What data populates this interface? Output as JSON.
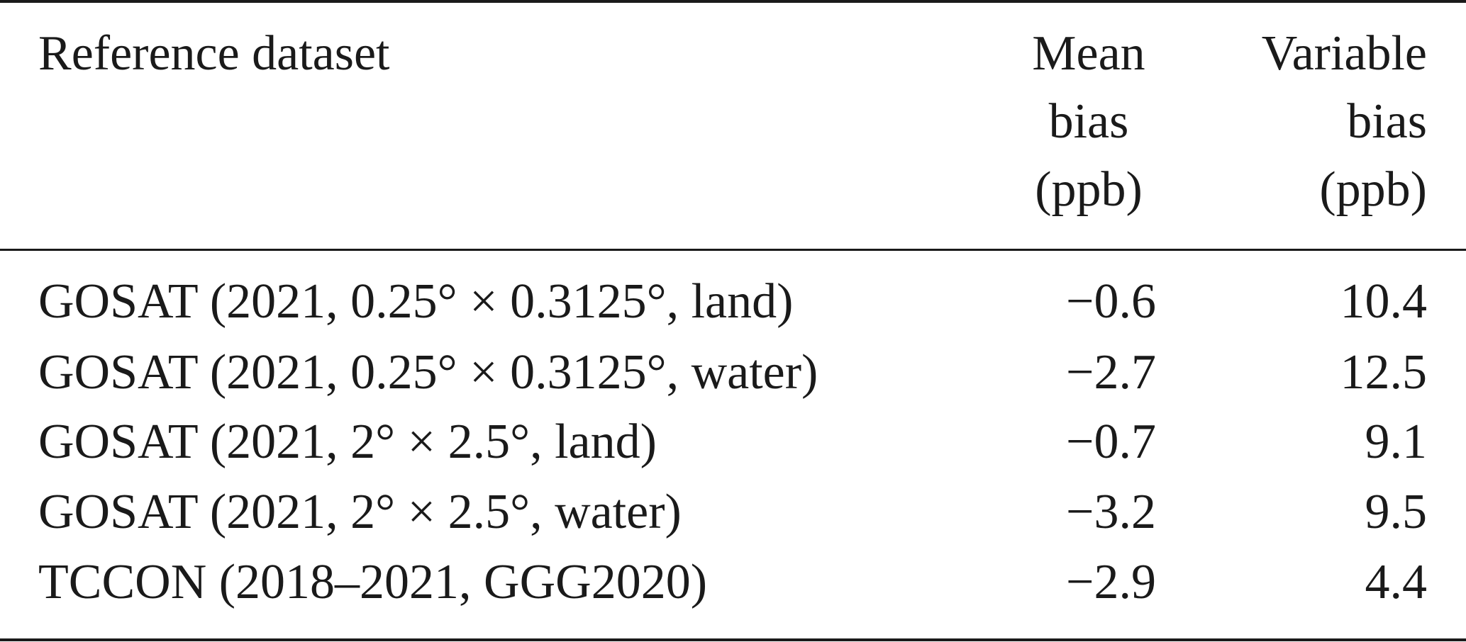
{
  "table": {
    "headers": {
      "dataset": "Reference dataset",
      "mean_bias": "Mean\nbias\n(ppb)",
      "variable_bias": "Variable\nbias\n(ppb)"
    },
    "rows": [
      {
        "dataset": "GOSAT (2021, 0.25° × 0.3125°, land)",
        "mean_bias": "−0.6",
        "variable_bias": "10.4"
      },
      {
        "dataset": "GOSAT (2021, 0.25° × 0.3125°, water)",
        "mean_bias": "−2.7",
        "variable_bias": "12.5"
      },
      {
        "dataset": "GOSAT (2021, 2° × 2.5°, land)",
        "mean_bias": "−0.7",
        "variable_bias": "9.1"
      },
      {
        "dataset": "GOSAT (2021, 2° × 2.5°, water)",
        "mean_bias": "−3.2",
        "variable_bias": "9.5"
      },
      {
        "dataset": "TCCON (2018–2021, GGG2020)",
        "mean_bias": "−2.9",
        "variable_bias": "4.4"
      }
    ]
  }
}
